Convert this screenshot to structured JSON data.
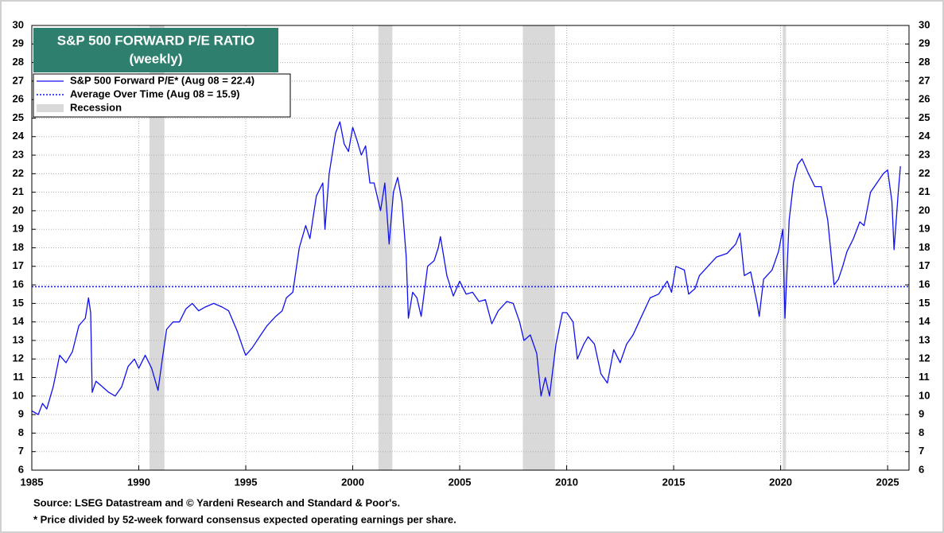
{
  "chart_data": {
    "type": "line",
    "title": "S&P 500 FORWARD P/E RATIO",
    "subtitle": "(weekly)",
    "source": "Source: LSEG Datastream and © Yardeni Research and Standard & Poor's.",
    "note": "* Price divided by 52-week forward consensus expected operating earnings per share.",
    "xlim": [
      1985,
      2026
    ],
    "xticks": [
      1985,
      1990,
      1995,
      2000,
      2005,
      2010,
      2015,
      2020,
      2025
    ],
    "ylim": [
      6,
      30
    ],
    "yticks": [
      6,
      7,
      8,
      9,
      10,
      11,
      12,
      13,
      14,
      15,
      16,
      17,
      18,
      19,
      20,
      21,
      22,
      23,
      24,
      25,
      26,
      27,
      28,
      29,
      30
    ],
    "grid": true,
    "x": [
      1985.0,
      1985.3,
      1985.5,
      1985.7,
      1986.0,
      1986.3,
      1986.6,
      1986.9,
      1987.2,
      1987.5,
      1987.65,
      1987.75,
      1987.82,
      1988.0,
      1988.3,
      1988.6,
      1988.9,
      1989.2,
      1989.5,
      1989.8,
      1990.0,
      1990.3,
      1990.6,
      1990.9,
      1991.1,
      1991.3,
      1991.6,
      1991.9,
      1992.2,
      1992.5,
      1992.8,
      1993.1,
      1993.5,
      1993.9,
      1994.2,
      1994.6,
      1994.9,
      1995.0,
      1995.3,
      1995.7,
      1996.0,
      1996.4,
      1996.7,
      1996.9,
      1997.2,
      1997.5,
      1997.8,
      1998.0,
      1998.3,
      1998.6,
      1998.7,
      1998.9,
      1999.2,
      1999.4,
      1999.6,
      1999.8,
      2000.0,
      2000.2,
      2000.4,
      2000.6,
      2000.8,
      2001.0,
      2001.3,
      2001.5,
      2001.7,
      2001.9,
      2002.1,
      2002.3,
      2002.5,
      2002.6,
      2002.8,
      2003.0,
      2003.2,
      2003.5,
      2003.8,
      2004.0,
      2004.1,
      2004.4,
      2004.7,
      2005.0,
      2005.3,
      2005.6,
      2005.9,
      2006.2,
      2006.5,
      2006.8,
      2007.2,
      2007.5,
      2007.8,
      2008.0,
      2008.3,
      2008.6,
      2008.8,
      2009.0,
      2009.2,
      2009.5,
      2009.8,
      2010.0,
      2010.3,
      2010.5,
      2010.8,
      2011.0,
      2011.3,
      2011.6,
      2011.9,
      2012.2,
      2012.5,
      2012.8,
      2013.1,
      2013.5,
      2013.9,
      2014.3,
      2014.7,
      2014.9,
      2015.1,
      2015.5,
      2015.7,
      2016.0,
      2016.2,
      2016.6,
      2017.0,
      2017.5,
      2017.9,
      2018.1,
      2018.3,
      2018.6,
      2018.9,
      2019.0,
      2019.2,
      2019.6,
      2019.9,
      2020.1,
      2020.2,
      2020.4,
      2020.6,
      2020.8,
      2021.0,
      2021.3,
      2021.6,
      2021.9,
      2022.2,
      2022.5,
      2022.7,
      2022.9,
      2023.1,
      2023.4,
      2023.7,
      2023.9,
      2024.2,
      2024.5,
      2024.8,
      2025.0,
      2025.2,
      2025.3,
      2025.5,
      2025.6
    ],
    "series": [
      {
        "name": "S&P 500 Forward P/E* (Aug 08 = 22.4)",
        "color": "#1010f0",
        "values": [
          9.2,
          9.0,
          9.6,
          9.3,
          10.5,
          12.2,
          11.8,
          12.4,
          13.8,
          14.2,
          15.3,
          14.5,
          10.2,
          10.8,
          10.5,
          10.2,
          10.0,
          10.5,
          11.6,
          12.0,
          11.5,
          12.2,
          11.5,
          10.3,
          12.0,
          13.6,
          14.0,
          14.0,
          14.7,
          15.0,
          14.6,
          14.8,
          15.0,
          14.8,
          14.6,
          13.5,
          12.5,
          12.2,
          12.6,
          13.3,
          13.8,
          14.3,
          14.6,
          15.3,
          15.6,
          18.0,
          19.2,
          18.5,
          20.8,
          21.5,
          19.0,
          22.0,
          24.2,
          24.8,
          23.6,
          23.2,
          24.5,
          23.8,
          23.0,
          23.5,
          21.5,
          21.5,
          20.0,
          21.5,
          18.2,
          21.0,
          21.8,
          20.5,
          17.5,
          14.2,
          15.6,
          15.3,
          14.3,
          17.0,
          17.3,
          18.0,
          18.6,
          16.5,
          15.4,
          16.2,
          15.5,
          15.6,
          15.1,
          15.2,
          13.9,
          14.6,
          15.1,
          15.0,
          14.0,
          13.0,
          13.3,
          12.3,
          10.0,
          11.0,
          10.0,
          12.8,
          14.5,
          14.5,
          14.0,
          12.0,
          12.8,
          13.2,
          12.8,
          11.2,
          10.7,
          12.5,
          11.8,
          12.8,
          13.3,
          14.3,
          15.3,
          15.5,
          16.2,
          15.6,
          17.0,
          16.8,
          15.5,
          15.8,
          16.5,
          17.0,
          17.5,
          17.7,
          18.2,
          18.8,
          16.5,
          16.7,
          15.0,
          14.3,
          16.3,
          16.8,
          17.8,
          19.0,
          14.2,
          19.5,
          21.5,
          22.5,
          22.8,
          22.0,
          21.3,
          21.3,
          19.5,
          16.0,
          16.3,
          17.0,
          17.8,
          18.5,
          19.4,
          19.2,
          21.0,
          21.5,
          22.0,
          22.2,
          20.5,
          17.9,
          21.0,
          22.4
        ]
      }
    ],
    "reference_line": {
      "name": "Average Over Time (Aug 08 = 15.9)",
      "value": 15.9,
      "color": "#1010f0"
    },
    "recessions": {
      "name": "Recession",
      "color": "#d9d9d9",
      "ranges": [
        [
          1990.5,
          1991.2
        ],
        [
          2001.2,
          2001.85
        ],
        [
          2007.95,
          2009.45
        ],
        [
          2020.1,
          2020.25
        ]
      ]
    }
  }
}
